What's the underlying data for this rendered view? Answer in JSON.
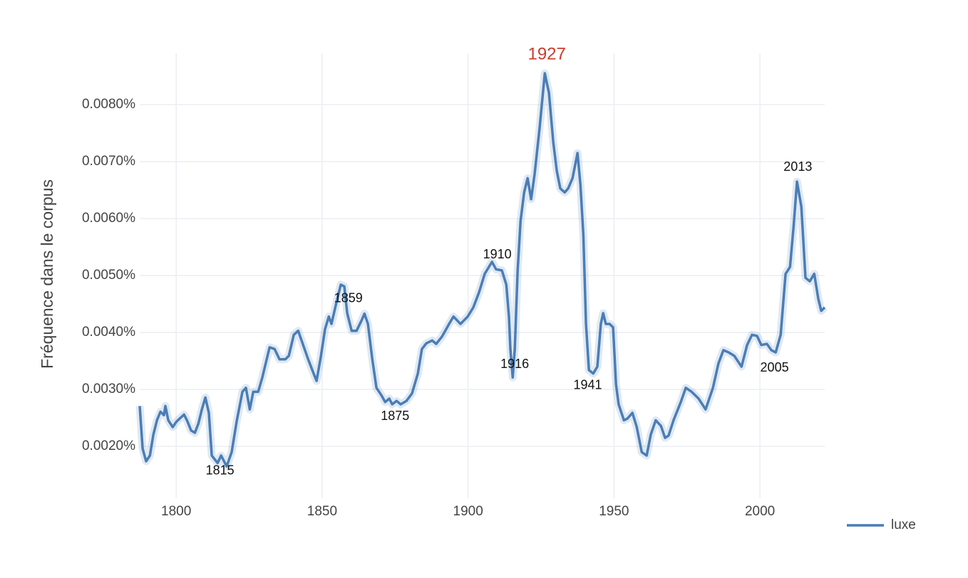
{
  "chart_data": {
    "type": "line",
    "y_axis_label": "Fréquence dans le corpus",
    "xlim": [
      1787.5,
      2022.2
    ],
    "xticks": [
      1800,
      1850,
      1900,
      1950,
      2000
    ],
    "ylim": [
      0.00109,
      0.0089
    ],
    "yticks": [
      {
        "value": 0.002,
        "label": "0.0020%"
      },
      {
        "value": 0.003,
        "label": "0.0030%"
      },
      {
        "value": 0.004,
        "label": "0.0040%"
      },
      {
        "value": 0.005,
        "label": "0.0050%"
      },
      {
        "value": 0.006,
        "label": "0.0060%"
      },
      {
        "value": 0.007,
        "label": "0.0070%"
      },
      {
        "value": 0.008,
        "label": "0.0080%"
      }
    ],
    "grid": true,
    "legend": "bottom-right",
    "x": [
      1787.5,
      1788.5,
      1789.7,
      1791.0,
      1792.2,
      1793.4,
      1794.6,
      1795.8,
      1796.3,
      1797.3,
      1798.8,
      1800.0,
      1801.2,
      1802.7,
      1803.7,
      1805.1,
      1806.4,
      1807.6,
      1808.8,
      1810.0,
      1811.2,
      1812.2,
      1814.2,
      1815.4,
      1817.3,
      1819.0,
      1820.8,
      1822.7,
      1823.9,
      1825.2,
      1826.4,
      1828.1,
      1829.5,
      1832.0,
      1833.7,
      1835.4,
      1837.4,
      1838.6,
      1840.3,
      1841.8,
      1843.5,
      1845.2,
      1847.1,
      1848.1,
      1849.6,
      1851.0,
      1852.3,
      1853.2,
      1854.9,
      1856.4,
      1857.6,
      1858.6,
      1860.1,
      1861.8,
      1863.5,
      1864.5,
      1865.7,
      1867.2,
      1868.6,
      1870.3,
      1871.6,
      1873.0,
      1874.0,
      1875.5,
      1876.9,
      1878.9,
      1880.8,
      1882.8,
      1884.2,
      1885.7,
      1887.7,
      1889.1,
      1891.1,
      1893.5,
      1895.0,
      1897.4,
      1899.9,
      1901.8,
      1903.8,
      1905.7,
      1908.2,
      1909.6,
      1911.6,
      1913.1,
      1914.0,
      1914.5,
      1915.3,
      1916.0,
      1917.0,
      1918.0,
      1919.2,
      1920.4,
      1921.6,
      1922.8,
      1924.5,
      1926.3,
      1927.7,
      1929.2,
      1930.4,
      1931.6,
      1933.1,
      1934.3,
      1935.8,
      1937.5,
      1938.5,
      1939.5,
      1940.4,
      1941.4,
      1942.9,
      1944.3,
      1945.5,
      1946.3,
      1947.2,
      1948.5,
      1949.7,
      1950.7,
      1951.6,
      1953.4,
      1954.6,
      1956.3,
      1957.8,
      1959.5,
      1961.2,
      1962.6,
      1964.3,
      1966.1,
      1967.5,
      1968.7,
      1970.4,
      1972.9,
      1974.6,
      1976.6,
      1979.0,
      1981.4,
      1983.9,
      1985.8,
      1987.5,
      1989.3,
      1991.2,
      1993.7,
      1995.6,
      1997.3,
      1999.0,
      2000.5,
      2002.4,
      2003.9,
      2005.4,
      2007.1,
      2008.8,
      2010.3,
      2011.5,
      2012.7,
      2014.2,
      2015.6,
      2017.1,
      2018.6,
      2020.0,
      2021.0,
      2022.2
    ],
    "series": [
      {
        "name": "luxe",
        "color": "#4a7db5",
        "values": [
          0.00271,
          0.00196,
          0.00174,
          0.00184,
          0.00221,
          0.00246,
          0.00261,
          0.00255,
          0.00271,
          0.00246,
          0.00234,
          0.00243,
          0.00249,
          0.00256,
          0.00246,
          0.00228,
          0.00224,
          0.0024,
          0.00265,
          0.00286,
          0.00259,
          0.00184,
          0.00171,
          0.00184,
          0.00165,
          0.0019,
          0.00246,
          0.00296,
          0.00303,
          0.00265,
          0.00296,
          0.00296,
          0.00321,
          0.00374,
          0.00371,
          0.00353,
          0.00353,
          0.00359,
          0.00396,
          0.00403,
          0.00378,
          0.00353,
          0.00328,
          0.00315,
          0.00359,
          0.00406,
          0.00428,
          0.00415,
          0.00453,
          0.00484,
          0.00481,
          0.00434,
          0.00403,
          0.00403,
          0.00421,
          0.00433,
          0.00415,
          0.00353,
          0.00303,
          0.0029,
          0.00278,
          0.00284,
          0.00274,
          0.0028,
          0.00274,
          0.0028,
          0.00293,
          0.00328,
          0.00371,
          0.00381,
          0.00386,
          0.0038,
          0.00393,
          0.00415,
          0.00428,
          0.00415,
          0.00428,
          0.00444,
          0.00471,
          0.00503,
          0.00524,
          0.00511,
          0.00509,
          0.00484,
          0.00428,
          0.00371,
          0.00321,
          0.00371,
          0.00509,
          0.00596,
          0.00646,
          0.00671,
          0.00634,
          0.00678,
          0.00759,
          0.00855,
          0.00821,
          0.00734,
          0.00684,
          0.00653,
          0.00646,
          0.00653,
          0.00671,
          0.00715,
          0.00659,
          0.00571,
          0.00415,
          0.00334,
          0.00328,
          0.0034,
          0.00415,
          0.00434,
          0.00415,
          0.00415,
          0.00409,
          0.00309,
          0.00274,
          0.00246,
          0.00249,
          0.00259,
          0.00234,
          0.0019,
          0.00184,
          0.00221,
          0.00246,
          0.00236,
          0.00215,
          0.00219,
          0.00246,
          0.00278,
          0.00303,
          0.00296,
          0.00284,
          0.00265,
          0.00303,
          0.00346,
          0.00369,
          0.00365,
          0.00359,
          0.0034,
          0.00378,
          0.00396,
          0.00394,
          0.00378,
          0.0038,
          0.00369,
          0.00365,
          0.00396,
          0.00503,
          0.00515,
          0.00584,
          0.00665,
          0.00621,
          0.00496,
          0.0049,
          0.00503,
          0.00459,
          0.00438,
          0.00444
        ]
      }
    ],
    "annotations": [
      {
        "text": "1815",
        "x": 1815,
        "position": "below"
      },
      {
        "text": "1859",
        "x": 1859,
        "position": "above"
      },
      {
        "text": "1875",
        "x": 1875,
        "position": "below"
      },
      {
        "text": "1910",
        "x": 1910,
        "position": "above"
      },
      {
        "text": "1916",
        "x": 1916,
        "position": "below"
      },
      {
        "text": "1927",
        "x": 1927,
        "position": "above",
        "color": "#cc3b2a"
      },
      {
        "text": "1941",
        "x": 1941,
        "position": "below"
      },
      {
        "text": "2005",
        "x": 2005,
        "position": "below"
      },
      {
        "text": "2013",
        "x": 2013,
        "position": "above"
      }
    ]
  }
}
